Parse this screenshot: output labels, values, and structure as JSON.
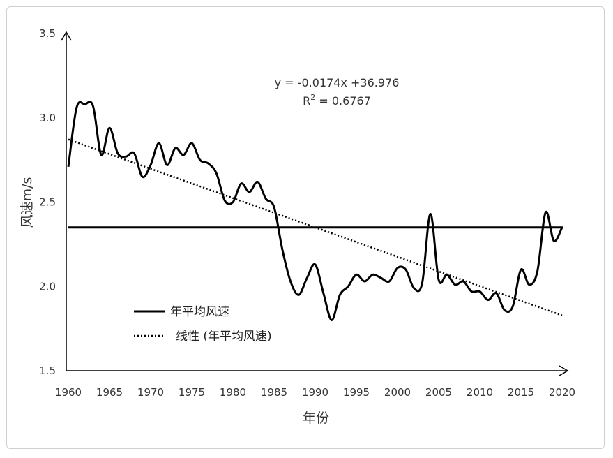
{
  "chart_data": {
    "type": "line",
    "xlabel": "年份",
    "ylabel": "风速m/s",
    "xlim": [
      1960,
      2020
    ],
    "ylim": [
      1.5,
      3.5
    ],
    "x_ticks": [
      1960,
      1965,
      1970,
      1975,
      1980,
      1985,
      1990,
      1995,
      2000,
      2005,
      2010,
      2015,
      2020
    ],
    "y_ticks": [
      "1.5",
      "2.0",
      "2.5",
      "3.0",
      "3.5"
    ],
    "grid": false,
    "legend_position": "lower-left",
    "series": [
      {
        "name": "年平均风速",
        "style": "solid",
        "color": "#000000",
        "x": [
          1960,
          1961,
          1962,
          1963,
          1964,
          1965,
          1966,
          1967,
          1968,
          1969,
          1970,
          1971,
          1972,
          1973,
          1974,
          1975,
          1976,
          1977,
          1978,
          1979,
          1980,
          1981,
          1982,
          1983,
          1984,
          1985,
          1986,
          1987,
          1988,
          1989,
          1990,
          1991,
          1992,
          1993,
          1994,
          1995,
          1996,
          1997,
          1998,
          1999,
          2000,
          2001,
          2002,
          2003,
          2004,
          2005,
          2006,
          2007,
          2008,
          2009,
          2010,
          2011,
          2012,
          2013,
          2014,
          2015,
          2016,
          2017,
          2018,
          2019,
          2020
        ],
        "values": [
          2.71,
          3.06,
          3.08,
          3.07,
          2.78,
          2.94,
          2.79,
          2.77,
          2.79,
          2.65,
          2.72,
          2.85,
          2.72,
          2.82,
          2.78,
          2.85,
          2.75,
          2.73,
          2.67,
          2.51,
          2.5,
          2.61,
          2.56,
          2.62,
          2.52,
          2.47,
          2.22,
          2.03,
          1.95,
          2.05,
          2.13,
          1.96,
          1.8,
          1.95,
          2.0,
          2.07,
          2.03,
          2.07,
          2.05,
          2.03,
          2.11,
          2.1,
          1.99,
          2.02,
          2.43,
          2.04,
          2.07,
          2.01,
          2.03,
          1.97,
          1.97,
          1.92,
          1.96,
          1.86,
          1.88,
          2.1,
          2.01,
          2.09,
          2.44,
          2.27,
          2.35
        ]
      },
      {
        "name": "线性 (年平均风速)",
        "style": "dotted",
        "color": "#000000",
        "slope": -0.0174,
        "intercept": 36.976
      },
      {
        "name": "",
        "style": "solid-thick",
        "color": "#000000",
        "value": 2.35
      }
    ],
    "annotations": {
      "equation": "y = -0.0174x +36.976",
      "r2_label": "R",
      "r2_sup": "2",
      "r2_value": " = 0.6767"
    }
  }
}
